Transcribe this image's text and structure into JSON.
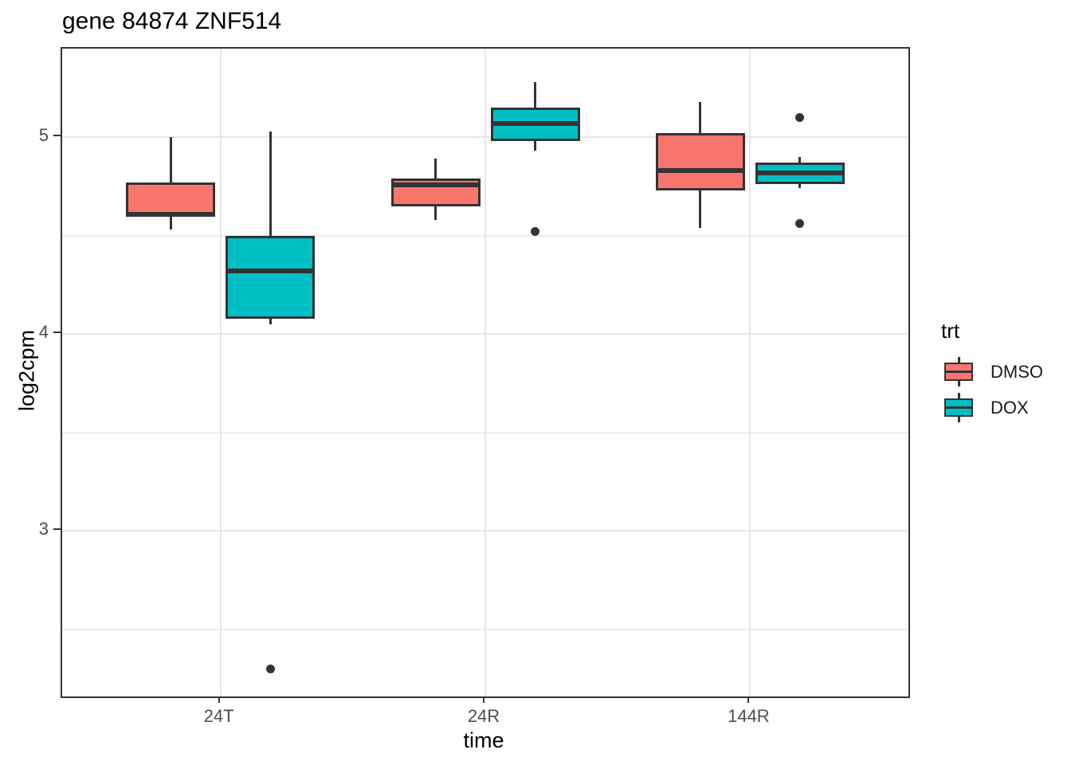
{
  "chart_data": {
    "type": "boxplot",
    "title": "gene 84874 ZNF514",
    "xlabel": "time",
    "ylabel": "log2cpm",
    "categories": [
      "24T",
      "24R",
      "144R"
    ],
    "y_axis": {
      "ticks": [
        5,
        4,
        3
      ],
      "minor_ticks": [
        4.5,
        3.5,
        2.5
      ],
      "range": [
        2.16,
        5.45
      ],
      "grid": true
    },
    "legend": {
      "title": "trt",
      "position": "right",
      "entries": [
        {
          "label": "DMSO",
          "color": "#F8766D"
        },
        {
          "label": "DOX",
          "color": "#00BFC4"
        }
      ]
    },
    "series": [
      {
        "name": "DMSO",
        "color": "#F8766D",
        "boxes": [
          {
            "category": "24T",
            "whisker_low": 4.53,
            "q1": 4.6,
            "median": 4.61,
            "q3": 4.77,
            "whisker_high": 5.0,
            "outliers": []
          },
          {
            "category": "24R",
            "whisker_low": 4.58,
            "q1": 4.65,
            "median": 4.76,
            "q3": 4.79,
            "whisker_high": 4.89,
            "outliers": []
          },
          {
            "category": "144R",
            "whisker_low": 4.54,
            "q1": 4.73,
            "median": 4.83,
            "q3": 5.02,
            "whisker_high": 5.18,
            "outliers": []
          }
        ]
      },
      {
        "name": "DOX",
        "color": "#00BFC4",
        "boxes": [
          {
            "category": "24T",
            "whisker_low": 4.05,
            "q1": 4.08,
            "median": 4.32,
            "q3": 4.5,
            "whisker_high": 5.03,
            "outliers": [
              2.3
            ]
          },
          {
            "category": "24R",
            "whisker_low": 4.93,
            "q1": 4.98,
            "median": 5.07,
            "q3": 5.15,
            "whisker_high": 5.28,
            "outliers": [
              4.52
            ]
          },
          {
            "category": "144R",
            "whisker_low": 4.74,
            "q1": 4.76,
            "median": 4.82,
            "q3": 4.87,
            "whisker_high": 4.9,
            "outliers": [
              5.1,
              4.56
            ]
          }
        ]
      }
    ]
  },
  "style": {
    "background": "#FFFFFF",
    "panel_border": "#333333",
    "box_stroke": "#333333",
    "grid_major": "#E6E6E6",
    "grid_minor": "#EDEDED",
    "tick_text": "#4D4D4D",
    "text": "#000000"
  }
}
